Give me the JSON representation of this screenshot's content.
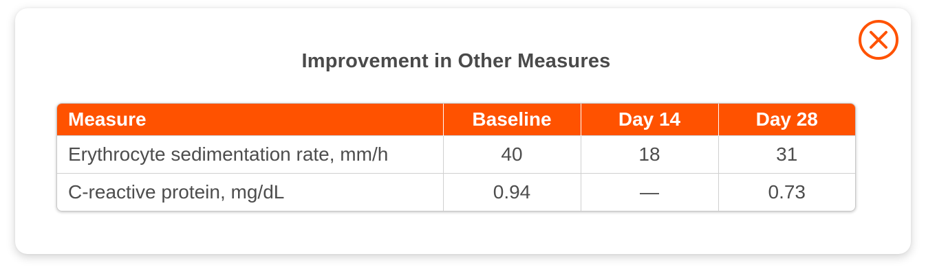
{
  "dialog": {
    "title": "Improvement in Other Measures",
    "close_icon": "close-circle-icon",
    "accent_color": "#ff5200"
  },
  "table": {
    "headers": [
      "Measure",
      "Baseline",
      "Day 14",
      "Day 28"
    ],
    "rows": [
      [
        "Erythrocyte sedimentation rate, mm/h",
        "40",
        "18",
        "31"
      ],
      [
        "C-reactive protein, mg/dL",
        "0.94",
        "—",
        "0.73"
      ]
    ]
  }
}
